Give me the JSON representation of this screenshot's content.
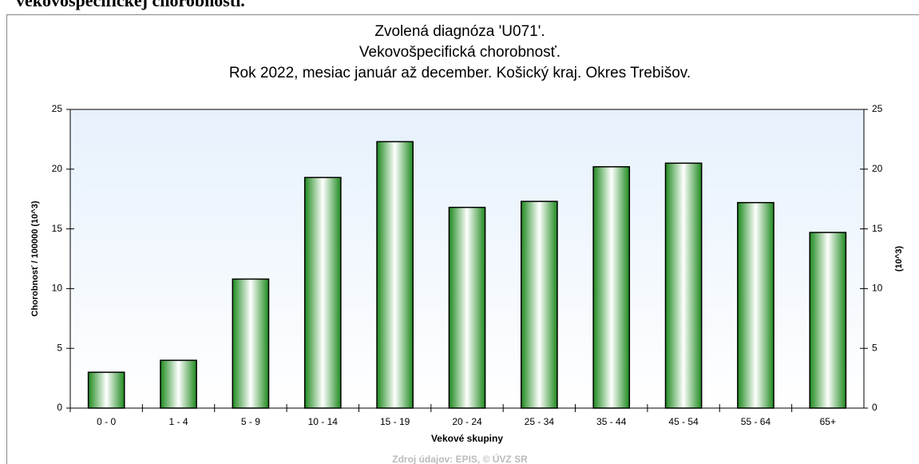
{
  "heading": "vekovošpecifickej chorobnosti.",
  "chart_data": {
    "type": "bar",
    "title": [
      "Zvolená diagnóza 'U071'.",
      "Vekovošpecifická chorobnosť.",
      "Rok 2022, mesiac január až december. Košický kraj. Okres Trebišov."
    ],
    "x_label": "Vekové skupiny",
    "y_label": "Chorobnosť / 100000 (10^3)",
    "y2_label": "(10^3)",
    "source": "Zdroj údajov: EPIS, © ÚVZ SR",
    "categories": [
      "0 - 0",
      "1 - 4",
      "5 - 9",
      "10 - 14",
      "15 - 19",
      "20 - 24",
      "25 - 34",
      "35 - 44",
      "45 - 54",
      "55 - 64",
      "65+"
    ],
    "values": [
      3.0,
      4.0,
      10.8,
      19.3,
      22.3,
      16.8,
      17.3,
      20.2,
      20.5,
      17.2,
      14.7
    ],
    "color": "#1e8a1e",
    "ylim": [
      0,
      25
    ],
    "yticks": [
      0,
      5,
      10,
      15,
      20,
      25
    ],
    "y2lim": [
      0,
      25
    ],
    "y2ticks": [
      0,
      5,
      10,
      15,
      20,
      25
    ]
  }
}
